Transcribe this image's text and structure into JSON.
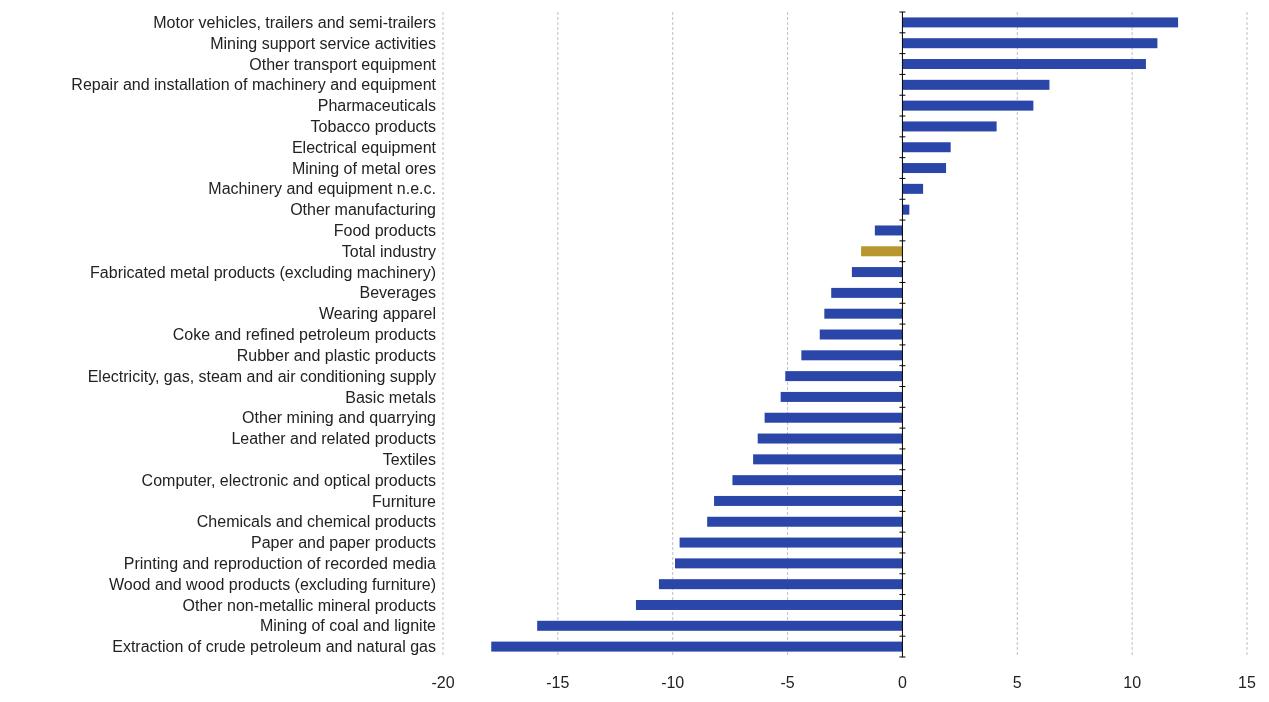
{
  "chart_data": {
    "type": "bar",
    "orientation": "horizontal",
    "categories": [
      "Motor vehicles, trailers and semi-trailers",
      "Mining support service activities",
      "Other transport equipment",
      "Repair and installation of machinery and equipment",
      "Pharmaceuticals",
      "Tobacco products",
      "Electrical equipment",
      "Mining of metal ores",
      "Machinery and equipment n.e.c.",
      "Other manufacturing",
      "Food products",
      "Total industry",
      "Fabricated metal products (excluding machinery)",
      "Beverages",
      "Wearing apparel",
      "Coke and refined petroleum products",
      "Rubber and plastic products",
      "Electricity, gas, steam and air conditioning supply",
      "Basic metals",
      "Other mining and quarrying",
      "Leather and related products",
      "Textiles",
      "Computer, electronic and optical products",
      "Furniture",
      "Chemicals and chemical products",
      "Paper and paper products",
      "Printing and reproduction of recorded media",
      "Wood and wood products (excluding furniture)",
      "Other non-metallic mineral products",
      "Mining of coal and lignite",
      "Extraction of crude petroleum and natural gas"
    ],
    "values": [
      12.0,
      11.1,
      10.6,
      6.4,
      5.7,
      4.1,
      2.1,
      1.9,
      0.9,
      0.3,
      -1.2,
      -1.8,
      -2.2,
      -3.1,
      -3.4,
      -3.6,
      -4.4,
      -5.1,
      -5.3,
      -6.0,
      -6.3,
      -6.5,
      -7.4,
      -8.2,
      -8.5,
      -9.7,
      -9.9,
      -10.6,
      -11.6,
      -15.9,
      -17.9
    ],
    "colors": [
      "#2a46a8",
      "#2a46a8",
      "#2a46a8",
      "#2a46a8",
      "#2a46a8",
      "#2a46a8",
      "#2a46a8",
      "#2a46a8",
      "#2a46a8",
      "#2a46a8",
      "#2a46a8",
      "#b8982e",
      "#2a46a8",
      "#2a46a8",
      "#2a46a8",
      "#2a46a8",
      "#2a46a8",
      "#2a46a8",
      "#2a46a8",
      "#2a46a8",
      "#2a46a8",
      "#2a46a8",
      "#2a46a8",
      "#2a46a8",
      "#2a46a8",
      "#2a46a8",
      "#2a46a8",
      "#2a46a8",
      "#2a46a8",
      "#2a46a8",
      "#2a46a8"
    ],
    "xlim": [
      -20,
      15
    ],
    "xticks": [
      -20,
      -15,
      -10,
      -5,
      0,
      5,
      10,
      15
    ],
    "grid": "x"
  }
}
